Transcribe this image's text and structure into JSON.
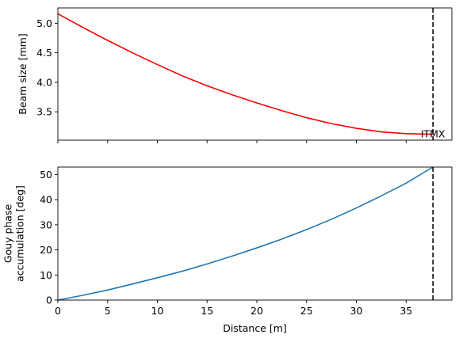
{
  "chart_data": [
    {
      "type": "line",
      "title": "",
      "xlabel": "",
      "ylabel": "Beam size [mm]",
      "xlim": [
        0,
        39.6
      ],
      "ylim": [
        3.02,
        5.26
      ],
      "grid": false,
      "x_ticks_visible": false,
      "yticks": [
        3.5,
        4.0,
        4.5,
        5.0
      ],
      "ytick_labels": [
        "3.5",
        "4.0",
        "4.5",
        "5.0"
      ],
      "series": [
        {
          "color": "#ff0000",
          "x": [
            0,
            2.5,
            5,
            7.5,
            10,
            12.5,
            15,
            17.5,
            20,
            22.5,
            25,
            27.5,
            30,
            32.5,
            35,
            37.7
          ],
          "values": [
            5.16,
            4.93,
            4.71,
            4.5,
            4.3,
            4.11,
            3.94,
            3.79,
            3.65,
            3.52,
            3.4,
            3.3,
            3.22,
            3.16,
            3.13,
            3.12
          ]
        }
      ],
      "vline": {
        "x": 37.7,
        "style": "dashed",
        "color": "#000000"
      },
      "annotation": {
        "text": "ITMX",
        "x": 37.7,
        "y": 3.12
      }
    },
    {
      "type": "line",
      "title": "",
      "xlabel": "Distance [m]",
      "ylabel": "Gouy phase\naccumulation [deg]",
      "ylabel_lines": [
        "Gouy phase",
        "accumulation [deg]"
      ],
      "xlim": [
        0,
        39.6
      ],
      "ylim": [
        0,
        53
      ],
      "grid": false,
      "xticks": [
        0,
        5,
        10,
        15,
        20,
        25,
        30,
        35
      ],
      "xtick_labels": [
        "0",
        "5",
        "10",
        "15",
        "20",
        "25",
        "30",
        "35"
      ],
      "yticks": [
        0,
        10,
        20,
        30,
        40,
        50
      ],
      "ytick_labels": [
        "0",
        "10",
        "20",
        "30",
        "40",
        "50"
      ],
      "series": [
        {
          "color": "#1f77b4",
          "x": [
            0,
            2.5,
            5,
            7.5,
            10,
            12.5,
            15,
            17.5,
            20,
            22.5,
            25,
            27.5,
            30,
            32.5,
            35,
            37.7
          ],
          "values": [
            0,
            1.9,
            4.0,
            6.4,
            8.9,
            11.5,
            14.4,
            17.5,
            20.8,
            24.3,
            28.1,
            32.2,
            36.7,
            41.5,
            46.6,
            53.0
          ]
        }
      ],
      "vline": {
        "x": 37.7,
        "style": "dashed",
        "color": "#000000"
      }
    }
  ]
}
